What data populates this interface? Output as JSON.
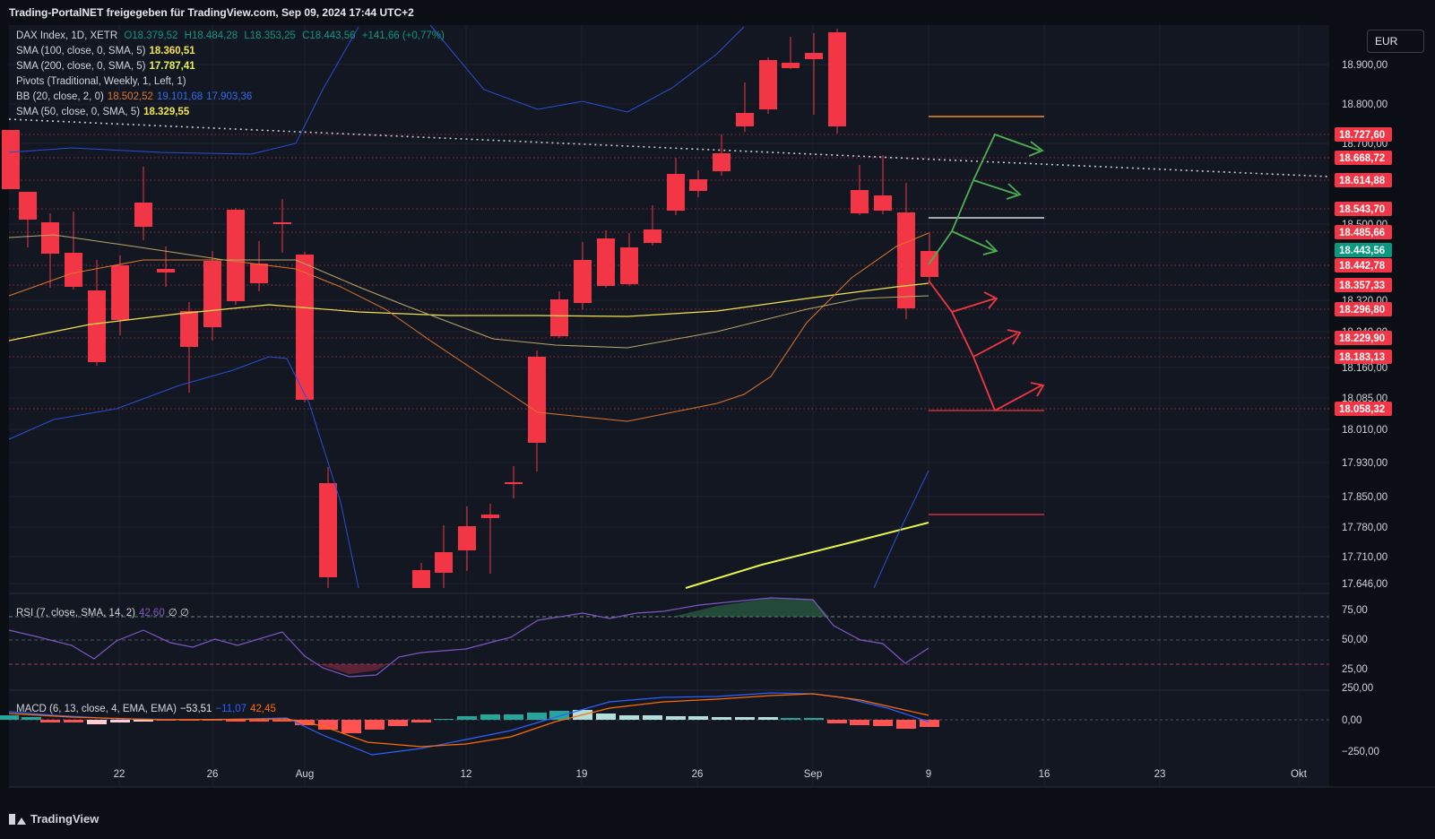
{
  "header": "Trading-PortalNET freigegeben für TradingView.com, Sep 09, 2024 17:44 UTC+2",
  "currency": "EUR",
  "brand": "TradingView",
  "legend": {
    "symbol": "DAX Index, 1D, XETR",
    "o": "O18.379,52",
    "h": "H18.484,28",
    "l": "L18.353,25",
    "c": "C18.443,56",
    "chg": "+141,66 (+0,77%)",
    "sma100": "SMA (100, close, 0, SMA, 5)",
    "sma100_v": "18.360,51",
    "sma200": "SMA (200, close, 0, SMA, 5)",
    "sma200_v": "17.787,41",
    "pivots": "Pivots (Traditional, Weekly, 1, Left, 1)",
    "bb": "BB (20, close, 2, 0)",
    "bb_v1": "18.502,52",
    "bb_v2": "19.101,68",
    "bb_v3": "17.903,36",
    "sma50": "SMA (50, close, 0, SMA, 5)",
    "sma50_v": "18.329,55",
    "rsi": "RSI (7, close, SMA, 14, 2)",
    "rsi_v": "42,60",
    "rsi_e": "∅ ∅",
    "macd": "MACD (6, 13, close, 4, EMA, EMA)",
    "macd_v1": "−53,51",
    "macd_v2": "−11,07",
    "macd_v3": "42,45"
  },
  "colors": {
    "up": "#089981",
    "down": "#f23645",
    "bg": "#0c0e16",
    "grid": "#1e2230",
    "sma100": "#f2e34c",
    "sma200": "#e9f549",
    "bb_mid": "#e0762a",
    "bb_band": "#2a4fd6",
    "sma50": "#b7a86a",
    "rsi": "#7e57c2",
    "macd": "#2962ff",
    "signal": "#ff6d00",
    "green_arrow": "#4caf50",
    "red_arrow": "#f23645"
  },
  "chart_data": {
    "type": "candlestick",
    "price_ticks": [
      "18.900,00",
      "18.800,00",
      "18.700,00",
      "18.500,00",
      "18.320,00",
      "18.240,00",
      "18.160,00",
      "18.085,00",
      "18.010,00",
      "17.930,00",
      "17.850,00",
      "17.780,00",
      "17.710,00",
      "17.646,00"
    ],
    "price_labels": [
      {
        "t": "18.727,60",
        "c": "#f23645"
      },
      {
        "t": "18.668,72",
        "c": "#f23645"
      },
      {
        "t": "18.614,88",
        "c": "#f23645"
      },
      {
        "t": "18.543,70",
        "c": "#f23645"
      },
      {
        "t": "18.485,66",
        "c": "#f23645"
      },
      {
        "t": "18.443,56",
        "c": "#089981"
      },
      {
        "t": "18.442,78",
        "c": "#f23645"
      },
      {
        "t": "18.357,33",
        "c": "#f23645"
      },
      {
        "t": "18.296,80",
        "c": "#f23645"
      },
      {
        "t": "18.229,90",
        "c": "#f23645"
      },
      {
        "t": "18.183,13",
        "c": "#f23645"
      },
      {
        "t": "18.058,32",
        "c": "#f23645"
      }
    ],
    "x_labels": [
      "22",
      "26",
      "Aug",
      "12",
      "19",
      "26",
      "Sep",
      "9",
      "16",
      "23",
      "Okt"
    ],
    "rsi_ticks": [
      "75,00",
      "50,00",
      "25,00"
    ],
    "macd_ticks": [
      "250,00",
      "0,00",
      "−250,00"
    ]
  }
}
